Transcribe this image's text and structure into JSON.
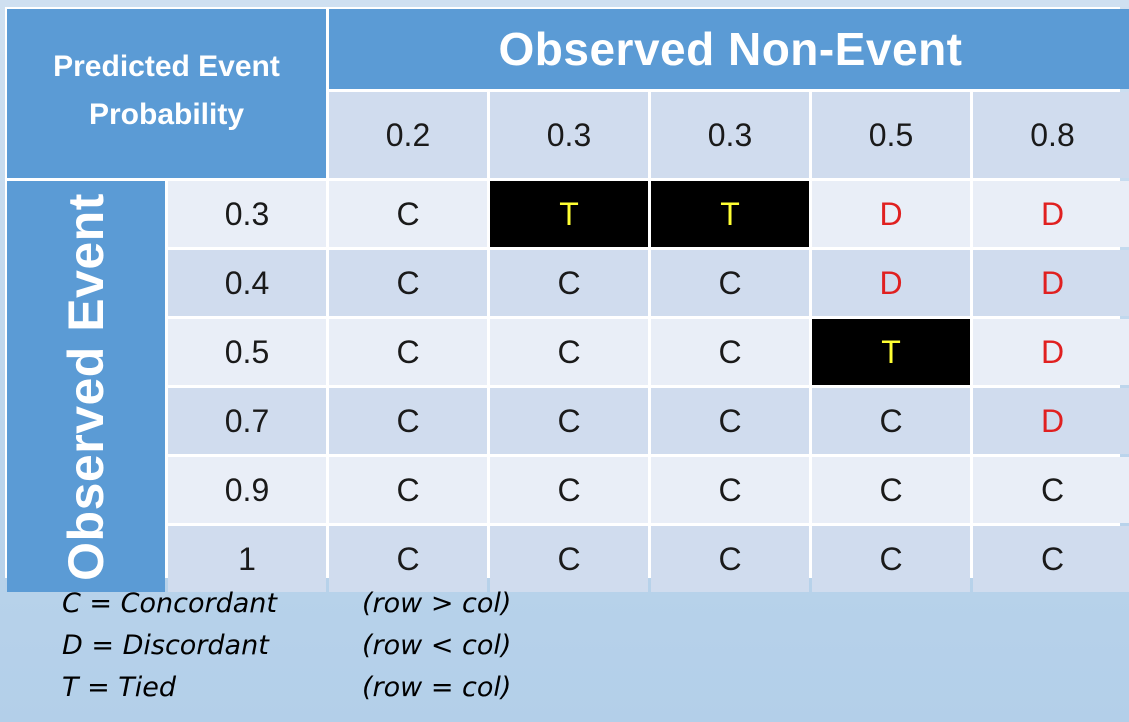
{
  "header": {
    "corner_line1": "Predicted Event",
    "corner_line2": "Probability",
    "top": "Observed Non-Event",
    "side": "Observed Event"
  },
  "columns": [
    "0.2",
    "0.3",
    "0.3",
    "0.5",
    "0.8"
  ],
  "rows": [
    {
      "label": "0.3",
      "cells": [
        "C",
        "T",
        "T",
        "D",
        "D"
      ]
    },
    {
      "label": "0.4",
      "cells": [
        "C",
        "C",
        "C",
        "D",
        "D"
      ]
    },
    {
      "label": "0.5",
      "cells": [
        "C",
        "C",
        "C",
        "T",
        "D"
      ]
    },
    {
      "label": "0.7",
      "cells": [
        "C",
        "C",
        "C",
        "C",
        "D"
      ]
    },
    {
      "label": "0.9",
      "cells": [
        "C",
        "C",
        "C",
        "C",
        "C"
      ]
    },
    {
      "label": "1",
      "cells": [
        "C",
        "C",
        "C",
        "C",
        "C"
      ]
    }
  ],
  "legend": [
    {
      "key": "C = Concordant",
      "rule": "(row > col)"
    },
    {
      "key": "D = Discordant",
      "rule": "(row < col)"
    },
    {
      "key": "T = Tied",
      "rule": "(row = col)"
    }
  ],
  "colors": {
    "header": "#5b9bd5",
    "tie_bg": "#000000",
    "tie_text": "#ffff33",
    "discordant": "#e02020"
  }
}
